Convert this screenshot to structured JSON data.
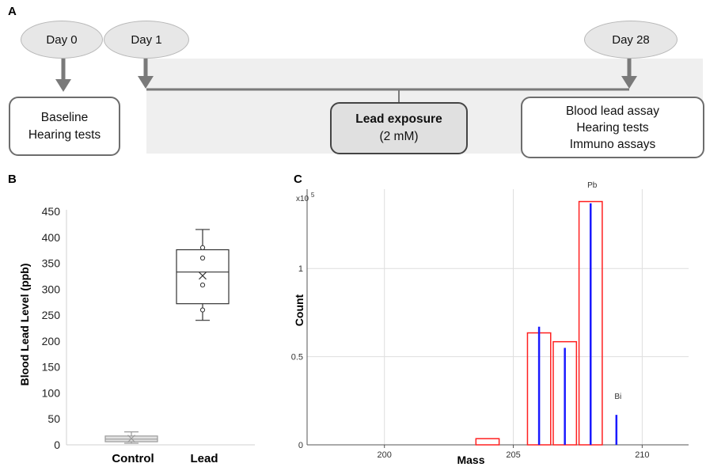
{
  "panel_a": {
    "letter": "A",
    "day0": "Day 0",
    "day1": "Day 1",
    "day28": "Day 28",
    "baseline_line1": "Baseline",
    "baseline_line2": "Hearing tests",
    "lead_exposure_title": "Lead exposure",
    "lead_exposure_dose": "(2 mM)",
    "final_line1": "Blood lead assay",
    "final_line2": "Hearing tests",
    "final_line3": "Immuno  assays"
  },
  "panel_b": {
    "letter": "B",
    "chart_data": {
      "type": "box",
      "ylabel": "Blood Lead Level (ppb)",
      "ylim": [
        0,
        450
      ],
      "yticks": [
        0,
        50,
        100,
        150,
        200,
        250,
        300,
        350,
        400,
        450
      ],
      "categories": [
        "Control",
        "Lead"
      ],
      "boxes": [
        {
          "name": "Control",
          "min": 3,
          "q1": 6,
          "median": 11,
          "q3": 17,
          "max": 25,
          "mean": 12,
          "points": []
        },
        {
          "name": "Lead",
          "min": 240,
          "q1": 272,
          "median": 333,
          "q3": 376,
          "max": 415,
          "mean": 326,
          "points": [
            380,
            360,
            308,
            260
          ]
        }
      ]
    }
  },
  "panel_c": {
    "letter": "C",
    "chart_data": {
      "type": "bar",
      "xlabel": "Mass",
      "ylabel": "Count",
      "y_scale_label": "x10",
      "y_scale_exponent": "5",
      "xlim": [
        197,
        211.8
      ],
      "ylim": [
        0,
        1.45
      ],
      "xticks": [
        200,
        205,
        210
      ],
      "yticks": [
        {
          "value": 0,
          "label": "0"
        },
        {
          "value": 0.5,
          "label": "0.5"
        },
        {
          "value": 1,
          "label": "1"
        }
      ],
      "grid": true,
      "series": [
        {
          "name": "",
          "color": "#ff2020",
          "style": "outline-bar",
          "x": [
            204,
            206,
            207,
            208
          ],
          "values": [
            0.035,
            0.635,
            0.585,
            1.38
          ]
        },
        {
          "name": "",
          "color": "#1a1aff",
          "style": "line-bar",
          "x": [
            206,
            207,
            208,
            209
          ],
          "values": [
            0.67,
            0.55,
            1.37,
            0.17
          ]
        }
      ],
      "annotations": [
        {
          "text": "Pb",
          "x": 208
        },
        {
          "text": "Bi",
          "x": 209
        }
      ]
    }
  }
}
